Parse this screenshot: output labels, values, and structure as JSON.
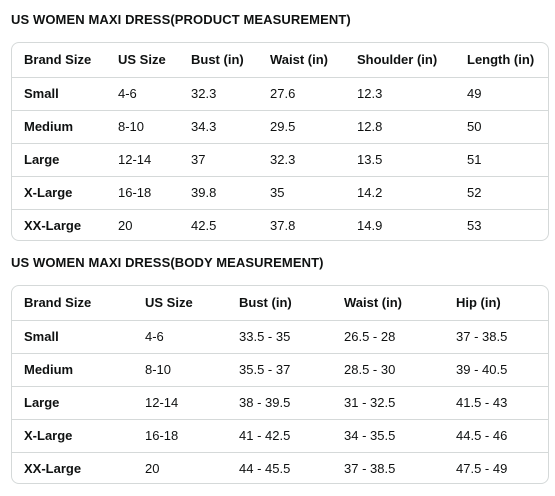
{
  "product_table": {
    "title": "US WOMEN MAXI DRESS(PRODUCT MEASUREMENT)",
    "headers": [
      "Brand Size",
      "US Size",
      "Bust (in)",
      "Waist (in)",
      "Shoulder (in)",
      "Length (in)"
    ],
    "rows": [
      [
        "Small",
        "4-6",
        "32.3",
        "27.6",
        "12.3",
        "49"
      ],
      [
        "Medium",
        "8-10",
        "34.3",
        "29.5",
        "12.8",
        "50"
      ],
      [
        "Large",
        "12-14",
        "37",
        "32.3",
        "13.5",
        "51"
      ],
      [
        "X-Large",
        "16-18",
        "39.8",
        "35",
        "14.2",
        "52"
      ],
      [
        "XX-Large",
        "20",
        "42.5",
        "37.8",
        "14.9",
        "53"
      ]
    ]
  },
  "body_table": {
    "title": "US WOMEN MAXI DRESS(BODY MEASUREMENT)",
    "headers": [
      "Brand Size",
      "US Size",
      "Bust (in)",
      "Waist (in)",
      "Hip (in)"
    ],
    "rows": [
      [
        "Small",
        "4-6",
        "33.5 - 35",
        "26.5 - 28",
        "37 - 38.5"
      ],
      [
        "Medium",
        "8-10",
        "35.5 - 37",
        "28.5 - 30",
        "39 - 40.5"
      ],
      [
        "Large",
        "12-14",
        "38 - 39.5",
        "31 - 32.5",
        "41.5 - 43"
      ],
      [
        "X-Large",
        "16-18",
        "41 - 42.5",
        "34 - 35.5",
        "44.5 - 46"
      ],
      [
        "XX-Large",
        "20",
        "44 - 45.5",
        "37 - 38.5",
        "47.5 - 49"
      ]
    ]
  }
}
